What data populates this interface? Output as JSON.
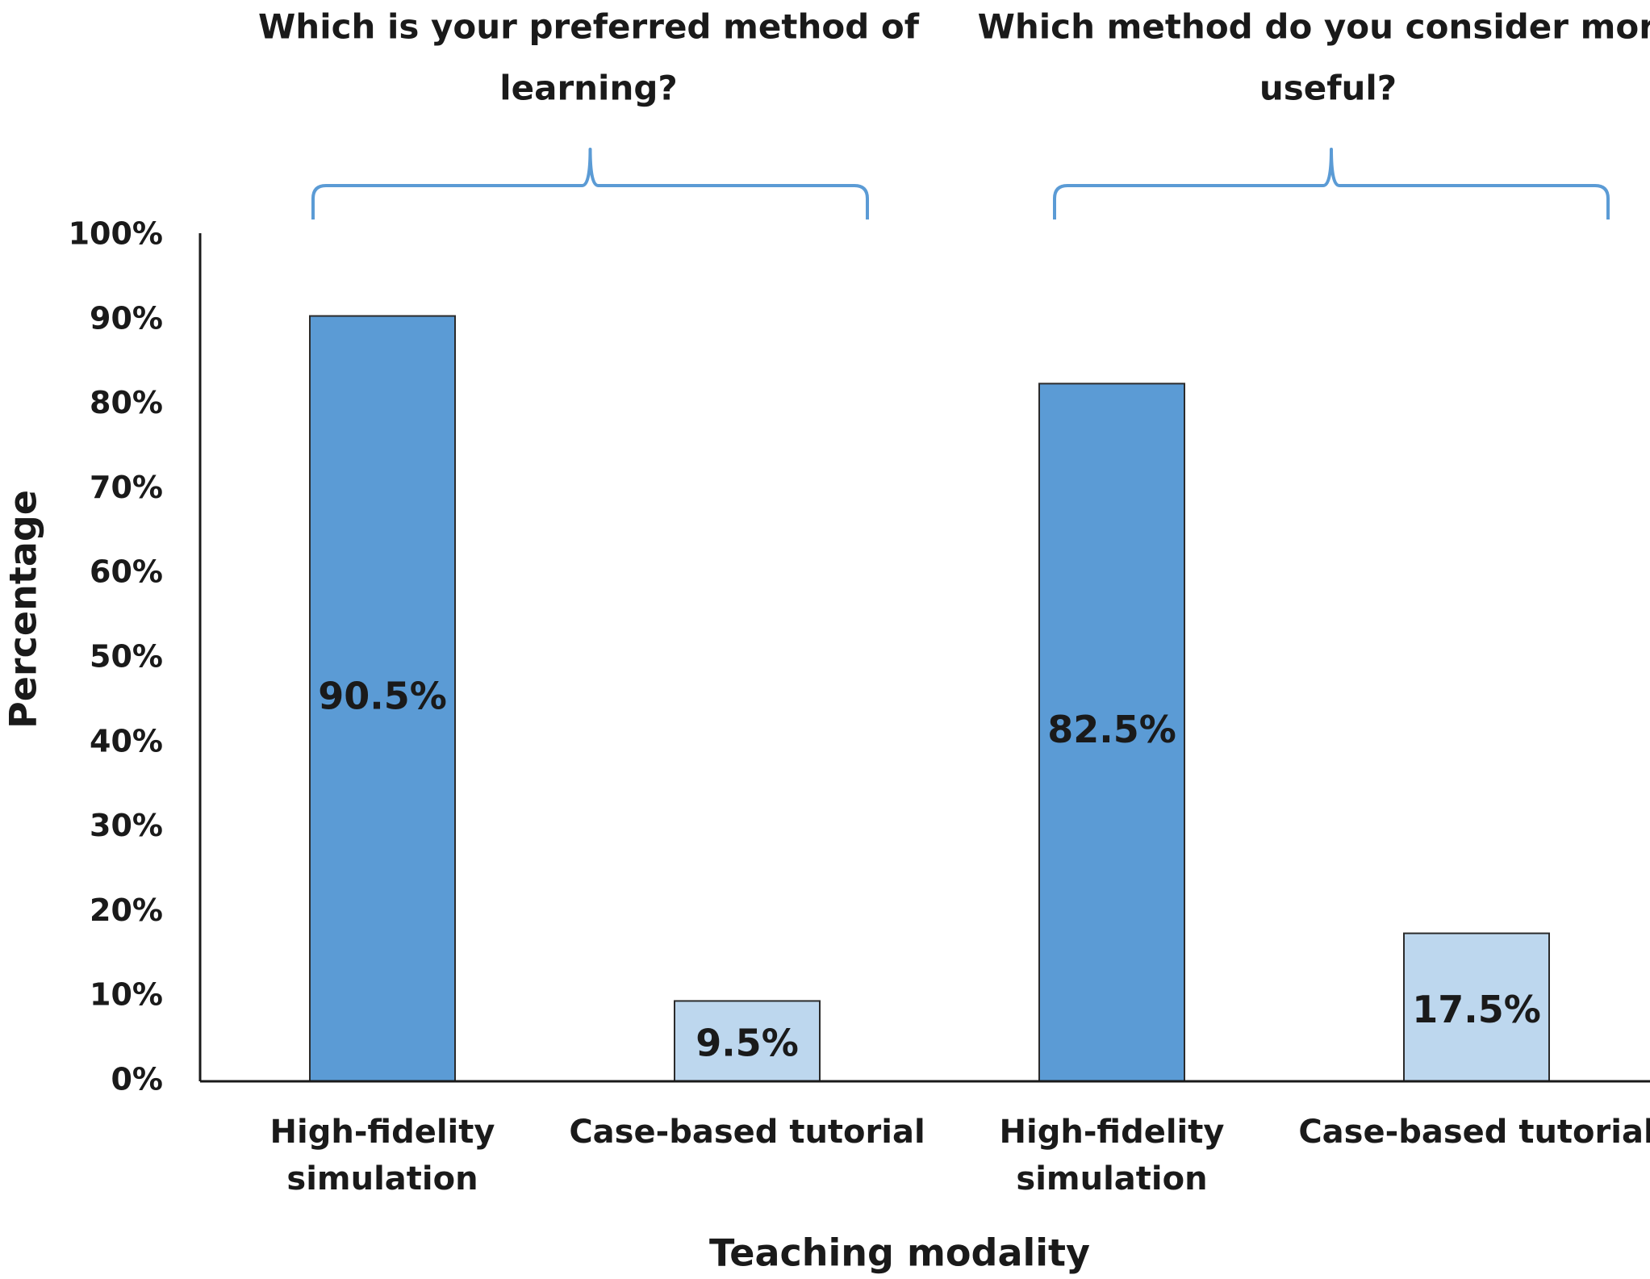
{
  "chart_data": {
    "type": "bar",
    "xlabel": "Teaching modality",
    "ylabel": "Percentage",
    "ylim": [
      0,
      100
    ],
    "ytick_labels": [
      "0%",
      "10%",
      "20%",
      "30%",
      "40%",
      "50%",
      "60%",
      "70%",
      "80%",
      "90%",
      "100%"
    ],
    "grid": false,
    "groups": [
      {
        "title_lines": [
          "Which is your preferred method of",
          "learning?"
        ],
        "bars": [
          {
            "category_lines": [
              "High-fidelity",
              "simulation"
            ],
            "value": 90.5,
            "label": "90.5%",
            "color": "#5b9bd5"
          },
          {
            "category_lines": [
              "Case-based tutorial"
            ],
            "value": 9.5,
            "label": "9.5%",
            "color": "#bdd7ee"
          }
        ]
      },
      {
        "title_lines": [
          "Which method do you consider more",
          "useful?"
        ],
        "bars": [
          {
            "category_lines": [
              "High-fidelity",
              "simulation"
            ],
            "value": 82.5,
            "label": "82.5%",
            "color": "#5b9bd5"
          },
          {
            "category_lines": [
              "Case-based tutorial"
            ],
            "value": 17.5,
            "label": "17.5%",
            "color": "#bdd7ee"
          }
        ]
      }
    ],
    "brace_color": "#5b9bd5",
    "axis_color": "#1a1a1a"
  }
}
